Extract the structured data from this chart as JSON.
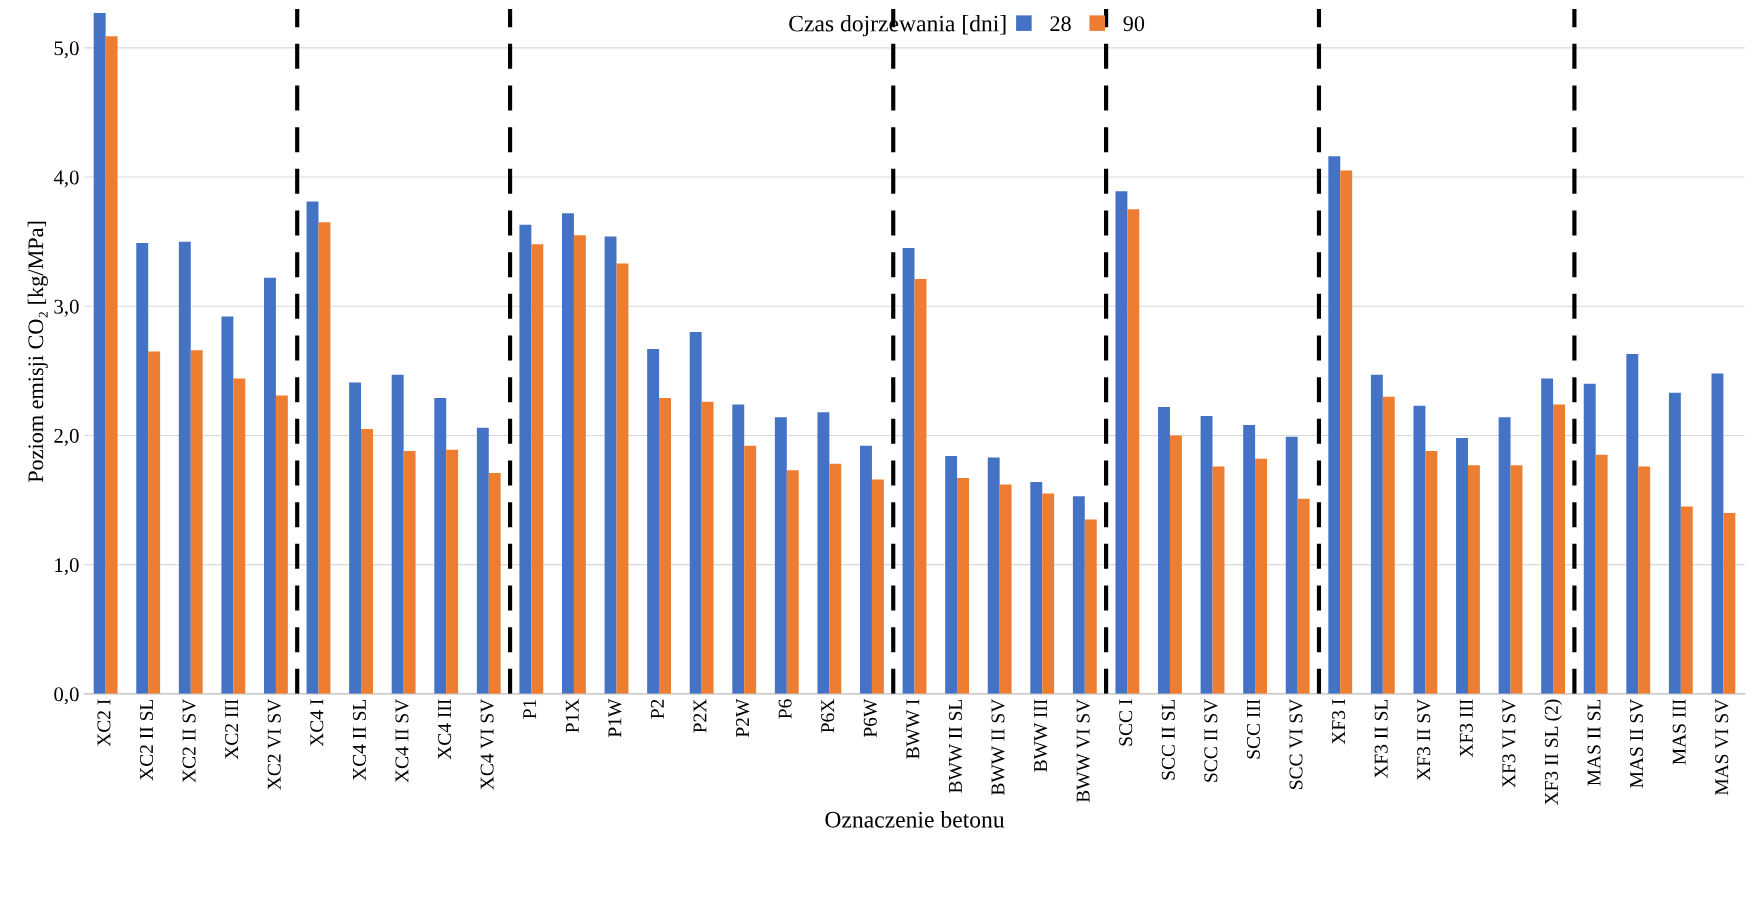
{
  "chart_data": {
    "type": "bar",
    "xlabel": "Oznaczenie betonu",
    "ylabel": "Poziom emisji CO₂ [kg/MPa]",
    "legend_title": "Czas dojrzewania [dni]",
    "categories": [
      "XC2 I",
      "XC2 II SL",
      "XC2 II SV",
      "XC2 III",
      "XC2 VI SV",
      "XC4 I",
      "XC4 II SL",
      "XC4 II SV",
      "XC4 III",
      "XC4 VI SV",
      "P1",
      "P1X",
      "P1W",
      "P2",
      "P2X",
      "P2W",
      "P6",
      "P6X",
      "P6W",
      "BWW I",
      "BWW II SL",
      "BWW II SV",
      "BWW III",
      "BWW VI SV",
      "SCC I",
      "SCC II SL",
      "SCC II SV",
      "SCC III",
      "SCC VI SV",
      "XF3 I",
      "XF3 II SL",
      "XF3 II SV",
      "XF3 III",
      "XF3 VI SV",
      "XF3 II SL (2)",
      "MAS II SL",
      "MAS II SV",
      "MAS III",
      "MAS VI SV"
    ],
    "series": [
      {
        "name": "28",
        "color": "#4472c4",
        "values": [
          5.27,
          3.49,
          3.5,
          2.92,
          3.22,
          3.81,
          2.41,
          2.47,
          2.29,
          2.06,
          3.63,
          3.72,
          3.54,
          2.67,
          2.8,
          2.24,
          2.14,
          2.18,
          1.92,
          3.45,
          1.84,
          1.83,
          1.64,
          1.53,
          3.89,
          2.22,
          2.15,
          2.08,
          1.99,
          4.16,
          2.47,
          2.23,
          1.98,
          2.14,
          2.44,
          2.4,
          2.63,
          2.33,
          2.48
        ]
      },
      {
        "name": "90",
        "color": "#ed7d31",
        "values": [
          5.09,
          2.65,
          2.66,
          2.44,
          2.31,
          3.65,
          2.05,
          1.88,
          1.89,
          1.71,
          3.48,
          3.55,
          3.33,
          2.29,
          2.26,
          1.92,
          1.73,
          1.78,
          1.66,
          3.21,
          1.67,
          1.62,
          1.55,
          1.35,
          3.75,
          2.0,
          1.76,
          1.82,
          1.51,
          4.05,
          2.3,
          1.88,
          1.77,
          1.77,
          2.24,
          1.85,
          1.76,
          1.45,
          1.4
        ]
      }
    ],
    "ylim": [
      0,
      5.3
    ],
    "yticks": [
      {
        "value": 0,
        "label": "0,0"
      },
      {
        "value": 1,
        "label": "1,0"
      },
      {
        "value": 2,
        "label": "2,0"
      },
      {
        "value": 3,
        "label": "3,0"
      },
      {
        "value": 4,
        "label": "4,0"
      },
      {
        "value": 5,
        "label": "5,0"
      }
    ],
    "grid": "y",
    "legend": "top"
  }
}
